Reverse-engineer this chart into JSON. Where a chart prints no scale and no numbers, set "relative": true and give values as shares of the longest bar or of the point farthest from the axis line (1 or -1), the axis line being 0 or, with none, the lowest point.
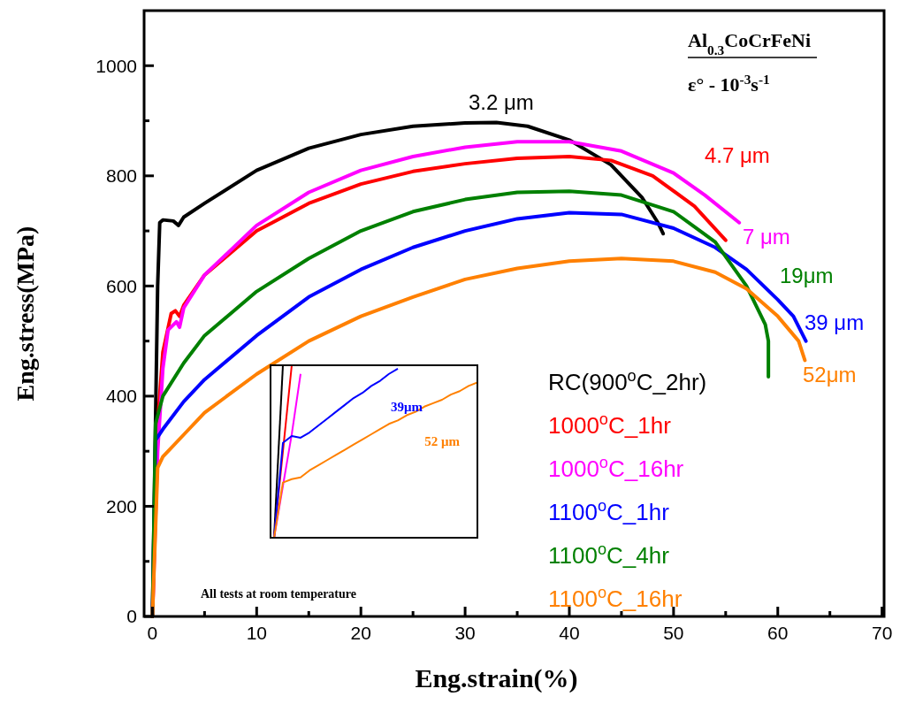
{
  "chart_data": [
    {
      "type": "line",
      "xlabel": "Eng.strain(%)",
      "ylabel": "Eng.stress(MPa)",
      "xlim": [
        -0.8,
        70.2
      ],
      "ylim": [
        0,
        1100
      ],
      "xticks": [
        0,
        {
          "value": 5,
          "label": null
        },
        10,
        {
          "value": 15,
          "label": null
        },
        20,
        {
          "value": 25,
          "label": null
        },
        30,
        {
          "value": 35,
          "label": null
        },
        40,
        {
          "value": 45,
          "label": null
        },
        50,
        {
          "value": 55,
          "label": null
        },
        60,
        {
          "value": 65,
          "label": null
        },
        70
      ],
      "yticks": [
        0,
        {
          "value": 100,
          "label": null
        },
        200,
        {
          "value": 300,
          "label": null
        },
        400,
        {
          "value": 500,
          "label": null
        },
        600,
        {
          "value": 700,
          "label": null
        },
        800,
        {
          "value": 900,
          "label": null
        },
        1000
      ],
      "legend": "right",
      "grid": false,
      "marker": "none",
      "line_style": "solid",
      "series": [
        {
          "name": "RC(900$^{o}$C_2hr)",
          "color": "#000000",
          "x": [
            0,
            0.5,
            0.7,
            1,
            2,
            2.5,
            3,
            5,
            10,
            15,
            20,
            25,
            30,
            33,
            36,
            40,
            44,
            47,
            48.5,
            49
          ],
          "values": [
            0,
            600,
            715,
            720,
            718,
            710,
            725,
            750,
            810,
            850,
            875,
            890,
            896,
            897,
            890,
            865,
            820,
            760,
            715,
            695
          ]
        },
        {
          "name": "1000$^{o}$C_1hr",
          "color": "#ff0000",
          "x": [
            0,
            0.5,
            1,
            1.8,
            2.2,
            2.6,
            3,
            5,
            10,
            15,
            20,
            25,
            30,
            35,
            40,
            44,
            48,
            52,
            55
          ],
          "values": [
            0,
            350,
            480,
            550,
            555,
            545,
            565,
            620,
            700,
            750,
            785,
            808,
            822,
            832,
            835,
            828,
            800,
            745,
            683
          ]
        },
        {
          "name": "1000$^{o}$C_16hr",
          "color": "#ff00ff",
          "x": [
            0,
            0.5,
            1,
            1.5,
            2.3,
            2.6,
            3,
            5,
            10,
            15,
            20,
            25,
            30,
            35,
            40,
            45,
            50,
            53,
            56.3
          ],
          "values": [
            0,
            300,
            450,
            520,
            535,
            525,
            560,
            620,
            710,
            770,
            810,
            835,
            852,
            862,
            862,
            845,
            805,
            765,
            715
          ]
        },
        {
          "name": "1100$^{o}$C_1hr",
          "color": "#0000ff",
          "x": [
            0,
            0.3,
            1,
            3,
            5,
            10,
            15,
            20,
            25,
            30,
            35,
            40,
            45,
            50,
            54,
            57,
            60,
            61.5,
            62.7
          ],
          "values": [
            0,
            320,
            340,
            390,
            430,
            510,
            580,
            630,
            670,
            700,
            722,
            733,
            730,
            705,
            670,
            630,
            575,
            545,
            500
          ]
        },
        {
          "name": "1100$^{o}$C_4hr",
          "color": "#008000",
          "x": [
            0,
            0.3,
            1,
            3,
            5,
            10,
            15,
            20,
            25,
            30,
            35,
            40,
            45,
            50,
            54,
            57,
            58.8,
            59.1,
            59.1
          ],
          "values": [
            0,
            350,
            400,
            460,
            510,
            590,
            650,
            700,
            735,
            757,
            770,
            772,
            765,
            735,
            680,
            600,
            530,
            500,
            435
          ]
        },
        {
          "name": "1100$^{o}$C_16hr",
          "color": "#ff8000",
          "x": [
            0,
            0.5,
            1,
            3,
            5,
            10,
            15,
            20,
            25,
            30,
            35,
            40,
            45,
            50,
            54,
            57,
            60,
            62,
            62.6
          ],
          "values": [
            0,
            270,
            290,
            330,
            370,
            440,
            500,
            545,
            580,
            612,
            632,
            645,
            650,
            645,
            625,
            595,
            545,
            500,
            465
          ]
        }
      ],
      "annotations": [
        "3.2 μm",
        "4.7 μm",
        "7 μm",
        "39 μm",
        "19μm",
        "52μm",
        "Al$_{0.3}$CoCrFeNi",
        "ε° - 10$^{-3}$s$^{-1}$",
        "All tests at room temperature"
      ]
    },
    {
      "type": "line",
      "relative": true,
      "categories": [
        null,
        null,
        null,
        null,
        null,
        null,
        null,
        null,
        null,
        null,
        null,
        null,
        null,
        null,
        null,
        null,
        null,
        null,
        null,
        null,
        null,
        null,
        null,
        null
      ],
      "marker": "none",
      "series": [
        {
          "color": "#000000",
          "values": [
            0,
            1,
            null,
            null,
            null,
            null,
            null,
            null,
            null,
            null,
            null,
            null,
            null,
            null,
            null,
            null,
            null,
            null,
            null,
            null,
            null,
            null,
            null,
            null
          ]
        },
        {
          "color": "#ff0000",
          "values": [
            0,
            0.5,
            1,
            null,
            null,
            null,
            null,
            null,
            null,
            null,
            null,
            null,
            null,
            null,
            null,
            null,
            null,
            null,
            null,
            null,
            null,
            null,
            null,
            null
          ]
        },
        {
          "color": "#ff00ff",
          "values": [
            0,
            0.3,
            0.6,
            0.95,
            null,
            null,
            null,
            null,
            null,
            null,
            null,
            null,
            null,
            null,
            null,
            null,
            null,
            null,
            null,
            null,
            null,
            null,
            null,
            null
          ]
        },
        {
          "color": "#0000ff",
          "values": [
            0,
            0.55,
            0.59,
            0.58,
            0.61,
            0.65,
            0.69,
            0.73,
            0.77,
            0.81,
            0.84,
            0.88,
            0.91,
            0.95,
            0.98,
            null,
            null,
            null,
            null,
            null,
            null,
            null,
            null,
            null
          ]
        },
        {
          "color": "#ff8000",
          "values": [
            0,
            0.32,
            0.34,
            0.35,
            0.39,
            0.42,
            0.45,
            0.48,
            0.51,
            0.54,
            0.57,
            0.6,
            0.63,
            0.66,
            0.68,
            0.71,
            0.73,
            0.76,
            0.78,
            0.8,
            0.83,
            0.85,
            0.88,
            0.9
          ]
        }
      ],
      "annotations": [
        "39μm",
        "52 μm"
      ]
    }
  ]
}
